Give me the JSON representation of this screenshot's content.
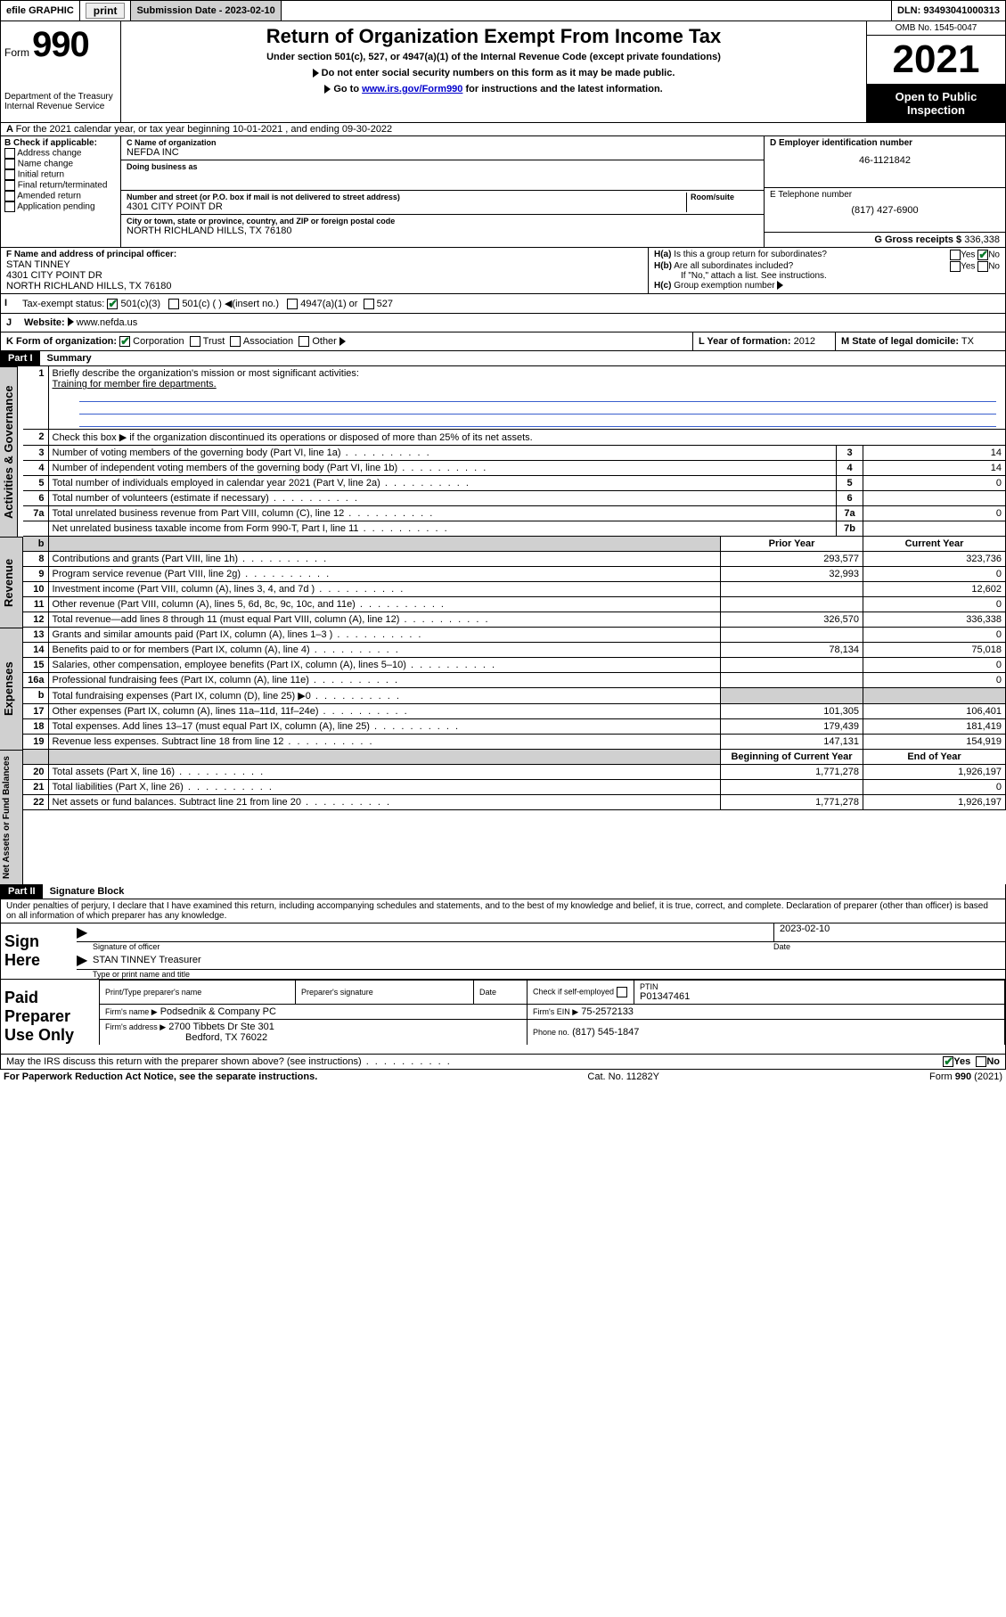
{
  "header_bar": {
    "efile": "efile GRAPHIC",
    "print": "print",
    "sub_label": "Submission Date - 2023-02-10",
    "dln": "DLN: 93493041000313"
  },
  "top": {
    "form_word": "Form",
    "form_no": "990",
    "dept": "Department of the Treasury",
    "irs": "Internal Revenue Service",
    "title": "Return of Organization Exempt From Income Tax",
    "sub1": "Under section 501(c), 527, or 4947(a)(1) of the Internal Revenue Code (except private foundations)",
    "sub2": "Do not enter social security numbers on this form as it may be made public.",
    "sub3_pre": "Go to ",
    "sub3_link": "www.irs.gov/Form990",
    "sub3_post": " for instructions and the latest information.",
    "omb": "OMB No. 1545-0047",
    "year": "2021",
    "open": "Open to Public Inspection"
  },
  "A": {
    "text": "For the 2021 calendar year, or tax year beginning 10-01-2021   , and ending 09-30-2022"
  },
  "B": {
    "hdr": "B Check if applicable:",
    "items": [
      "Address change",
      "Name change",
      "Initial return",
      "Final return/terminated",
      "Amended return",
      "Application pending"
    ]
  },
  "C": {
    "name_lbl": "C Name of organization",
    "name": "NEFDA INC",
    "dba_lbl": "Doing business as",
    "dba": "",
    "addr_lbl": "Number and street (or P.O. box if mail is not delivered to street address)",
    "room_lbl": "Room/suite",
    "addr": "4301 CITY POINT DR",
    "city_lbl": "City or town, state or province, country, and ZIP or foreign postal code",
    "city": "NORTH RICHLAND HILLS, TX  76180"
  },
  "D": {
    "lbl": "D Employer identification number",
    "val": "46-1121842"
  },
  "E": {
    "lbl": "E Telephone number",
    "val": "(817) 427-6900"
  },
  "G": {
    "lbl": "G Gross receipts $",
    "val": "336,338"
  },
  "F": {
    "lbl": "F  Name and address of principal officer:",
    "name": "STAN TINNEY",
    "addr1": "4301 CITY POINT DR",
    "addr2": "NORTH RICHLAND HILLS, TX  76180"
  },
  "H": {
    "a": "Is this a group return for subordinates?",
    "b": "Are all subordinates included?",
    "note": "If \"No,\" attach a list. See instructions.",
    "c": "Group exemption number"
  },
  "I": {
    "lbl": "Tax-exempt status:",
    "opt1": "501(c)(3)",
    "opt2": "501(c) (   )",
    "opt2b": "(insert no.)",
    "opt3": "4947(a)(1) or",
    "opt4": "527"
  },
  "J": {
    "lbl": "Website:",
    "val": "www.nefda.us"
  },
  "K": {
    "lbl": "K Form of organization:",
    "opts": [
      "Corporation",
      "Trust",
      "Association",
      "Other"
    ]
  },
  "L": {
    "lbl": "L Year of formation:",
    "val": "2012"
  },
  "M": {
    "lbl": "M State of legal domicile:",
    "val": "TX"
  },
  "part1": {
    "hdr": "Part I",
    "title": "Summary",
    "l1": "Briefly describe the organization's mission or most significant activities:",
    "l1_val": "Training for member fire departments.",
    "l2": "Check this box ▶       if the organization discontinued its operations or disposed of more than 25% of its net assets.",
    "tab_ag": "Activities & Governance",
    "tab_rev": "Revenue",
    "tab_exp": "Expenses",
    "tab_na": "Net Assets or Fund Balances",
    "col_prior": "Prior Year",
    "col_curr": "Current Year",
    "col_beg": "Beginning of Current Year",
    "col_end": "End of Year",
    "lines_ag": [
      {
        "n": "3",
        "d": "Number of voting members of the governing body (Part VI, line 1a)",
        "box": "3",
        "v": "14"
      },
      {
        "n": "4",
        "d": "Number of independent voting members of the governing body (Part VI, line 1b)",
        "box": "4",
        "v": "14"
      },
      {
        "n": "5",
        "d": "Total number of individuals employed in calendar year 2021 (Part V, line 2a)",
        "box": "5",
        "v": "0"
      },
      {
        "n": "6",
        "d": "Total number of volunteers (estimate if necessary)",
        "box": "6",
        "v": ""
      },
      {
        "n": "7a",
        "d": "Total unrelated business revenue from Part VIII, column (C), line 12",
        "box": "7a",
        "v": "0"
      },
      {
        "n": "",
        "d": "Net unrelated business taxable income from Form 990-T, Part I, line 11",
        "box": "7b",
        "v": ""
      }
    ],
    "lines_rev": [
      {
        "n": "8",
        "d": "Contributions and grants (Part VIII, line 1h)",
        "p": "293,577",
        "c": "323,736"
      },
      {
        "n": "9",
        "d": "Program service revenue (Part VIII, line 2g)",
        "p": "32,993",
        "c": "0"
      },
      {
        "n": "10",
        "d": "Investment income (Part VIII, column (A), lines 3, 4, and 7d )",
        "p": "",
        "c": "12,602"
      },
      {
        "n": "11",
        "d": "Other revenue (Part VIII, column (A), lines 5, 6d, 8c, 9c, 10c, and 11e)",
        "p": "",
        "c": "0"
      },
      {
        "n": "12",
        "d": "Total revenue—add lines 8 through 11 (must equal Part VIII, column (A), line 12)",
        "p": "326,570",
        "c": "336,338"
      }
    ],
    "lines_exp": [
      {
        "n": "13",
        "d": "Grants and similar amounts paid (Part IX, column (A), lines 1–3 )",
        "p": "",
        "c": "0"
      },
      {
        "n": "14",
        "d": "Benefits paid to or for members (Part IX, column (A), line 4)",
        "p": "78,134",
        "c": "75,018"
      },
      {
        "n": "15",
        "d": "Salaries, other compensation, employee benefits (Part IX, column (A), lines 5–10)",
        "p": "",
        "c": "0"
      },
      {
        "n": "16a",
        "d": "Professional fundraising fees (Part IX, column (A), line 11e)",
        "p": "",
        "c": "0"
      },
      {
        "n": "b",
        "d": "Total fundraising expenses (Part IX, column (D), line 25) ▶0",
        "p": "",
        "c": "",
        "shade": true
      },
      {
        "n": "17",
        "d": "Other expenses (Part IX, column (A), lines 11a–11d, 11f–24e)",
        "p": "101,305",
        "c": "106,401"
      },
      {
        "n": "18",
        "d": "Total expenses. Add lines 13–17 (must equal Part IX, column (A), line 25)",
        "p": "179,439",
        "c": "181,419"
      },
      {
        "n": "19",
        "d": "Revenue less expenses. Subtract line 18 from line 12",
        "p": "147,131",
        "c": "154,919"
      }
    ],
    "lines_na": [
      {
        "n": "20",
        "d": "Total assets (Part X, line 16)",
        "p": "1,771,278",
        "c": "1,926,197"
      },
      {
        "n": "21",
        "d": "Total liabilities (Part X, line 26)",
        "p": "",
        "c": "0"
      },
      {
        "n": "22",
        "d": "Net assets or fund balances. Subtract line 21 from line 20",
        "p": "1,771,278",
        "c": "1,926,197"
      }
    ]
  },
  "part2": {
    "hdr": "Part II",
    "title": "Signature Block",
    "decl": "Under penalties of perjury, I declare that I have examined this return, including accompanying schedules and statements, and to the best of my knowledge and belief, it is true, correct, and complete. Declaration of preparer (other than officer) is based on all information of which preparer has any knowledge.",
    "sign_here": "Sign Here",
    "sig_officer": "Signature of officer",
    "date_lbl": "Date",
    "date_val": "2023-02-10",
    "officer_name": "STAN TINNEY Treasurer",
    "type_name": "Type or print name and title",
    "paid": "Paid Preparer Use Only",
    "pt_name_lbl": "Print/Type preparer's name",
    "pt_sig_lbl": "Preparer's signature",
    "pt_date_lbl": "Date",
    "pt_check": "Check        if self-employed",
    "ptin_lbl": "PTIN",
    "ptin": "P01347461",
    "firm_name_lbl": "Firm's name    ▶",
    "firm_name": "Podsednik & Company PC",
    "firm_ein_lbl": "Firm's EIN ▶",
    "firm_ein": "75-2572133",
    "firm_addr_lbl": "Firm's address ▶",
    "firm_addr1": "2700 Tibbets Dr Ste 301",
    "firm_addr2": "Bedford, TX  76022",
    "phone_lbl": "Phone no.",
    "phone": "(817) 545-1847",
    "discuss": "May the IRS discuss this return with the preparer shown above? (see instructions)"
  },
  "footer": {
    "left": "For Paperwork Reduction Act Notice, see the separate instructions.",
    "mid": "Cat. No. 11282Y",
    "right": "Form 990 (2021)"
  },
  "yes": "Yes",
  "no": "No"
}
